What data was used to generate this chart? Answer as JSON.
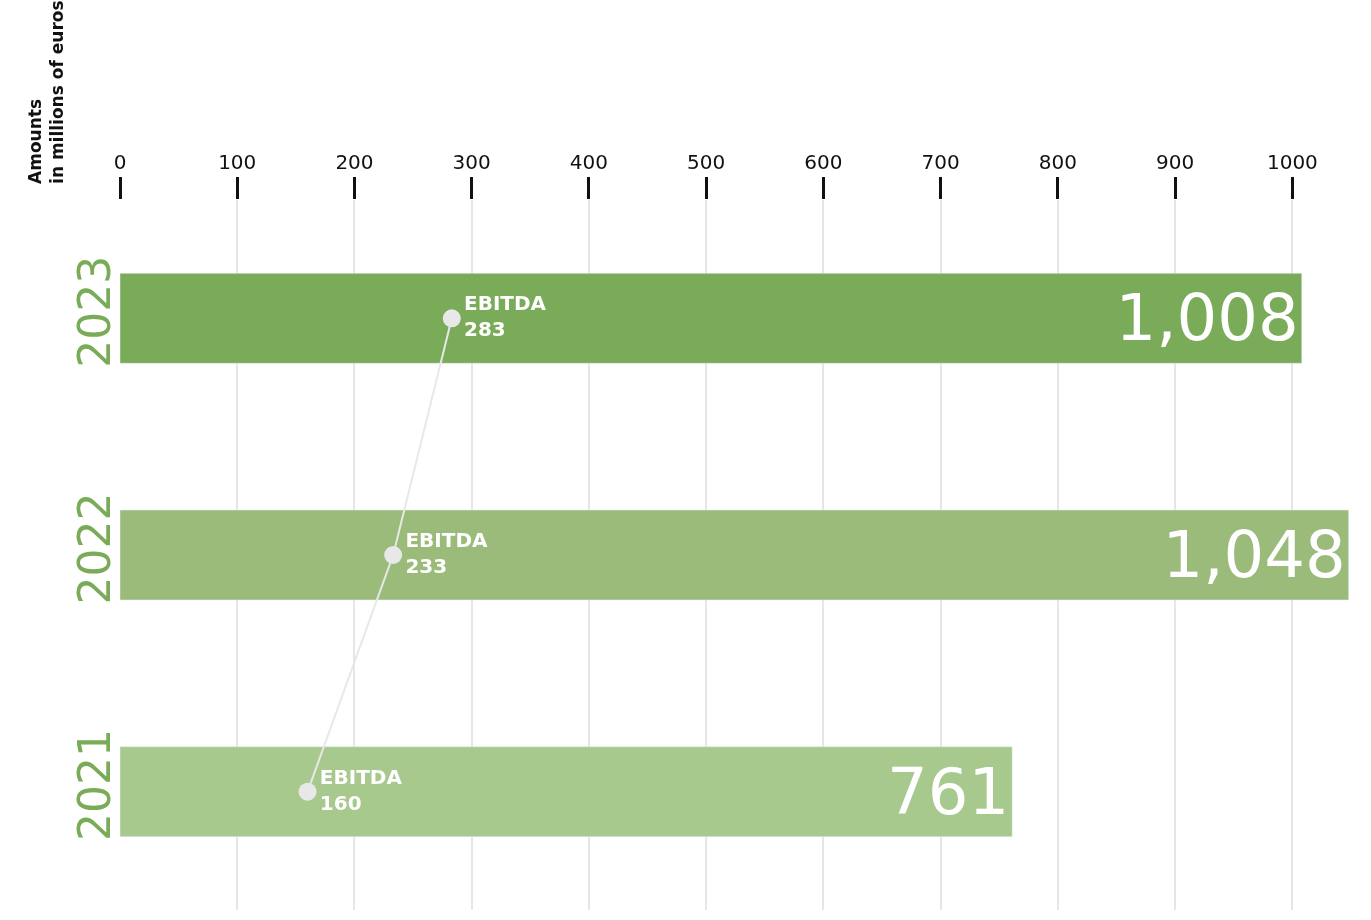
{
  "chart_data": {
    "type": "bar",
    "orientation": "horizontal",
    "ylabel": "Amounts\nin millions of euros",
    "categories": [
      "2023",
      "2022",
      "2021"
    ],
    "xlim": [
      0,
      1050
    ],
    "xticks": [
      0,
      100,
      200,
      300,
      400,
      500,
      600,
      700,
      800,
      900,
      1000
    ],
    "grid": "x",
    "series": [
      {
        "colors": [
          "#7aab58",
          "#9abb7a",
          "#a8c98e"
        ],
        "values": [
          1008,
          1048,
          761
        ],
        "value_labels": [
          "1,008",
          "1,048",
          "761"
        ]
      },
      {
        "type": "line",
        "name": "EBITDA",
        "color": "#e8e8e8",
        "marker": "circle",
        "values": [
          283,
          233,
          160
        ],
        "value_labels": [
          "283",
          "233",
          "160"
        ]
      }
    ]
  }
}
